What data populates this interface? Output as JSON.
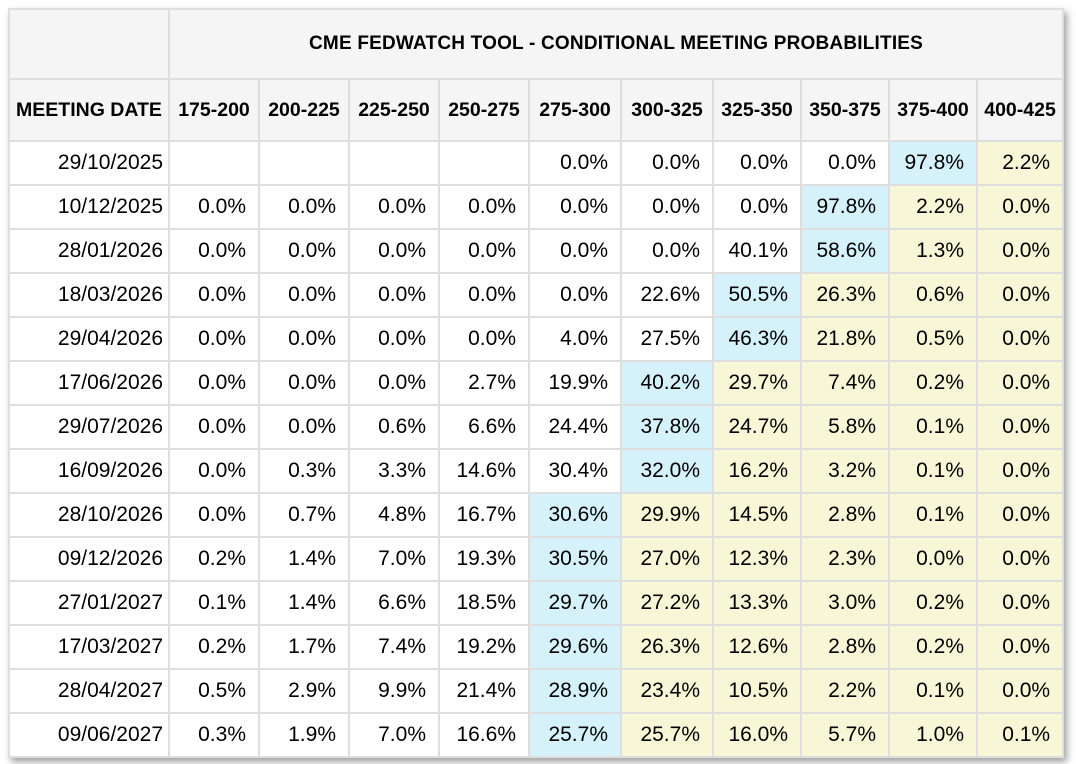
{
  "chart_data": {
    "type": "table",
    "title": "CME FEDWATCH TOOL - CONDITIONAL MEETING PROBABILITIES",
    "columns": [
      "MEETING DATE",
      "175-200",
      "200-225",
      "225-250",
      "250-275",
      "275-300",
      "300-325",
      "325-350",
      "350-375",
      "375-400",
      "400-425"
    ],
    "rows": [
      {
        "date": "29/10/2025",
        "values": [
          "",
          "",
          "",
          "",
          "0.0%",
          "0.0%",
          "0.0%",
          "0.0%",
          "97.8%",
          "2.2%"
        ],
        "blue_index": 8
      },
      {
        "date": "10/12/2025",
        "values": [
          "0.0%",
          "0.0%",
          "0.0%",
          "0.0%",
          "0.0%",
          "0.0%",
          "0.0%",
          "97.8%",
          "2.2%",
          "0.0%"
        ],
        "blue_index": 7
      },
      {
        "date": "28/01/2026",
        "values": [
          "0.0%",
          "0.0%",
          "0.0%",
          "0.0%",
          "0.0%",
          "0.0%",
          "40.1%",
          "58.6%",
          "1.3%",
          "0.0%"
        ],
        "blue_index": 7
      },
      {
        "date": "18/03/2026",
        "values": [
          "0.0%",
          "0.0%",
          "0.0%",
          "0.0%",
          "0.0%",
          "22.6%",
          "50.5%",
          "26.3%",
          "0.6%",
          "0.0%"
        ],
        "blue_index": 6
      },
      {
        "date": "29/04/2026",
        "values": [
          "0.0%",
          "0.0%",
          "0.0%",
          "0.0%",
          "4.0%",
          "27.5%",
          "46.3%",
          "21.8%",
          "0.5%",
          "0.0%"
        ],
        "blue_index": 6
      },
      {
        "date": "17/06/2026",
        "values": [
          "0.0%",
          "0.0%",
          "0.0%",
          "2.7%",
          "19.9%",
          "40.2%",
          "29.7%",
          "7.4%",
          "0.2%",
          "0.0%"
        ],
        "blue_index": 5
      },
      {
        "date": "29/07/2026",
        "values": [
          "0.0%",
          "0.0%",
          "0.6%",
          "6.6%",
          "24.4%",
          "37.8%",
          "24.7%",
          "5.8%",
          "0.1%",
          "0.0%"
        ],
        "blue_index": 5
      },
      {
        "date": "16/09/2026",
        "values": [
          "0.0%",
          "0.3%",
          "3.3%",
          "14.6%",
          "30.4%",
          "32.0%",
          "16.2%",
          "3.2%",
          "0.1%",
          "0.0%"
        ],
        "blue_index": 5
      },
      {
        "date": "28/10/2026",
        "values": [
          "0.0%",
          "0.7%",
          "4.8%",
          "16.7%",
          "30.6%",
          "29.9%",
          "14.5%",
          "2.8%",
          "0.1%",
          "0.0%"
        ],
        "blue_index": 4
      },
      {
        "date": "09/12/2026",
        "values": [
          "0.2%",
          "1.4%",
          "7.0%",
          "19.3%",
          "30.5%",
          "27.0%",
          "12.3%",
          "2.3%",
          "0.0%",
          "0.0%"
        ],
        "blue_index": 4
      },
      {
        "date": "27/01/2027",
        "values": [
          "0.1%",
          "1.4%",
          "6.6%",
          "18.5%",
          "29.7%",
          "27.2%",
          "13.3%",
          "3.0%",
          "0.2%",
          "0.0%"
        ],
        "blue_index": 4
      },
      {
        "date": "17/03/2027",
        "values": [
          "0.2%",
          "1.7%",
          "7.4%",
          "19.2%",
          "29.6%",
          "26.3%",
          "12.6%",
          "2.8%",
          "0.2%",
          "0.0%"
        ],
        "blue_index": 4
      },
      {
        "date": "28/04/2027",
        "values": [
          "0.5%",
          "2.9%",
          "9.9%",
          "21.4%",
          "28.9%",
          "23.4%",
          "10.5%",
          "2.2%",
          "0.1%",
          "0.0%"
        ],
        "blue_index": 4
      },
      {
        "date": "09/06/2027",
        "values": [
          "0.3%",
          "1.9%",
          "7.0%",
          "16.6%",
          "25.7%",
          "25.7%",
          "16.0%",
          "5.7%",
          "1.0%",
          "0.1%"
        ],
        "blue_index": 4
      }
    ],
    "highlight_legend": {
      "blue_means": "highest-probability rate range for the meeting",
      "yellow_means": "rate ranges above the highlighted range"
    }
  },
  "colors": {
    "highlight_blue": "#d5f2fa",
    "highlight_yellow": "#f7f7d8",
    "header_bg": "#f5f5f5",
    "border": "#dedede",
    "text": "#000000"
  }
}
